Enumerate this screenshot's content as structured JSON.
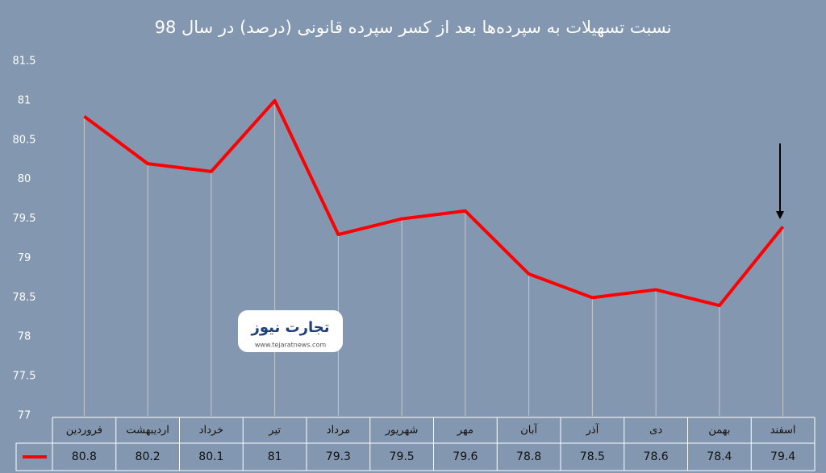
{
  "chart_data": {
    "type": "line",
    "title": "نسبت تسهیلات به سپرده‌ها بعد از کسر سپرده قانونی (درصد) در سال 98",
    "categories": [
      "فروردین",
      "اردیبهشت",
      "خرداد",
      "تیر",
      "مرداد",
      "شهریور",
      "مهر",
      "آبان",
      "آذر",
      "دی",
      "بهمن",
      "اسفند"
    ],
    "values": [
      80.8,
      80.2,
      80.1,
      81,
      79.3,
      79.5,
      79.6,
      78.8,
      78.5,
      78.6,
      78.4,
      79.4
    ],
    "color": "#ff0000",
    "ylim": [
      77,
      81.5
    ],
    "yticks": [
      81.5,
      81,
      80.5,
      80,
      79.5,
      79,
      78.5,
      78,
      77.5,
      77
    ],
    "watermark": {
      "name": "تجارت نیوز",
      "url": "www.tejaratnews.com"
    }
  }
}
